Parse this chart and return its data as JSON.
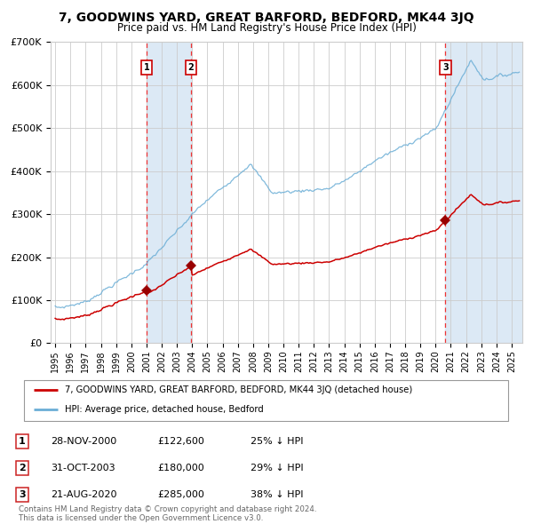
{
  "title": "7, GOODWINS YARD, GREAT BARFORD, BEDFORD, MK44 3JQ",
  "subtitle": "Price paid vs. HM Land Registry's House Price Index (HPI)",
  "ylabel_ticks": [
    "£0",
    "£100K",
    "£200K",
    "£300K",
    "£400K",
    "£500K",
    "£600K",
    "£700K"
  ],
  "ytick_vals": [
    0,
    100000,
    200000,
    300000,
    400000,
    500000,
    600000,
    700000
  ],
  "ylim": [
    0,
    700000
  ],
  "xlim_start": 1994.7,
  "xlim_end": 2025.7,
  "sale_dates": [
    2001.0,
    2003.92,
    2020.65
  ],
  "sale_prices": [
    122600,
    180000,
    285000
  ],
  "sale_labels": [
    "1",
    "2",
    "3"
  ],
  "legend_entries": [
    "7, GOODWINS YARD, GREAT BARFORD, BEDFORD, MK44 3JQ (detached house)",
    "HPI: Average price, detached house, Bedford"
  ],
  "table_rows": [
    [
      "1",
      "28-NOV-2000",
      "£122,600",
      "25% ↓ HPI"
    ],
    [
      "2",
      "31-OCT-2003",
      "£180,000",
      "29% ↓ HPI"
    ],
    [
      "3",
      "21-AUG-2020",
      "£285,000",
      "38% ↓ HPI"
    ]
  ],
  "footer": "Contains HM Land Registry data © Crown copyright and database right 2024.\nThis data is licensed under the Open Government Licence v3.0.",
  "red_color": "#cc0000",
  "blue_color": "#6baed6",
  "shade_color": "#dce9f5",
  "grid_color": "#cccccc",
  "dashed_color": "#ee3333",
  "marker_color": "#990000"
}
